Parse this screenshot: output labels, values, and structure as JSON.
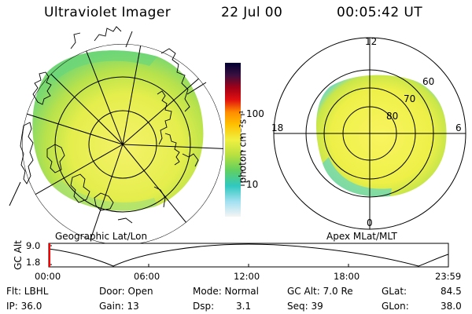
{
  "header": {
    "instrument": "Ultraviolet Imager",
    "date": "22 Jul 00",
    "time": "00:05:42 UT"
  },
  "colorbar": {
    "unit_label": "photon cm⁻²s⁻¹",
    "tick_100": "100",
    "tick_10": "10",
    "scale": "log"
  },
  "geo_panel": {
    "caption": "Geographic Lat/Lon"
  },
  "polar_panel": {
    "caption": "Apex MLat/MLT",
    "mlt_top": "12",
    "mlt_left": "18",
    "mlt_right": "6",
    "mlt_bottom": "0",
    "lat_60": "60",
    "lat_70": "70",
    "lat_80": "80"
  },
  "orbit_plot": {
    "ylabel": "GC Alt",
    "ytick_top": "9.0",
    "ytick_bottom": "1.8",
    "xticks": [
      "00:00",
      "06:00",
      "12:00",
      "18:00",
      "23:59"
    ],
    "current_marker_time": "00:05:42",
    "marker_color": "#ff0000"
  },
  "status": {
    "flt": "Flt: LBHL",
    "ip": "IP: 36.0",
    "door": "Door: Open",
    "gain": "Gain: 13",
    "mode": "Mode: Normal",
    "dsp_label": "Dsp:",
    "dsp_value": "3.1",
    "gcalt": "GC Alt: 7.0 Re",
    "seq": "Seq: 39",
    "glat_label": "GLat:",
    "glat_value": "84.5",
    "glon_label": "GLon:",
    "glon_value": "38.0"
  },
  "colors": {
    "aurora_yellow": "#f2f24a",
    "aurora_green": "#b8e04a",
    "aurora_cyan": "#40d8c8",
    "colorbar_top": "#000030",
    "colorbar_red": "#cc0010",
    "colorbar_orange": "#ff9a00"
  }
}
